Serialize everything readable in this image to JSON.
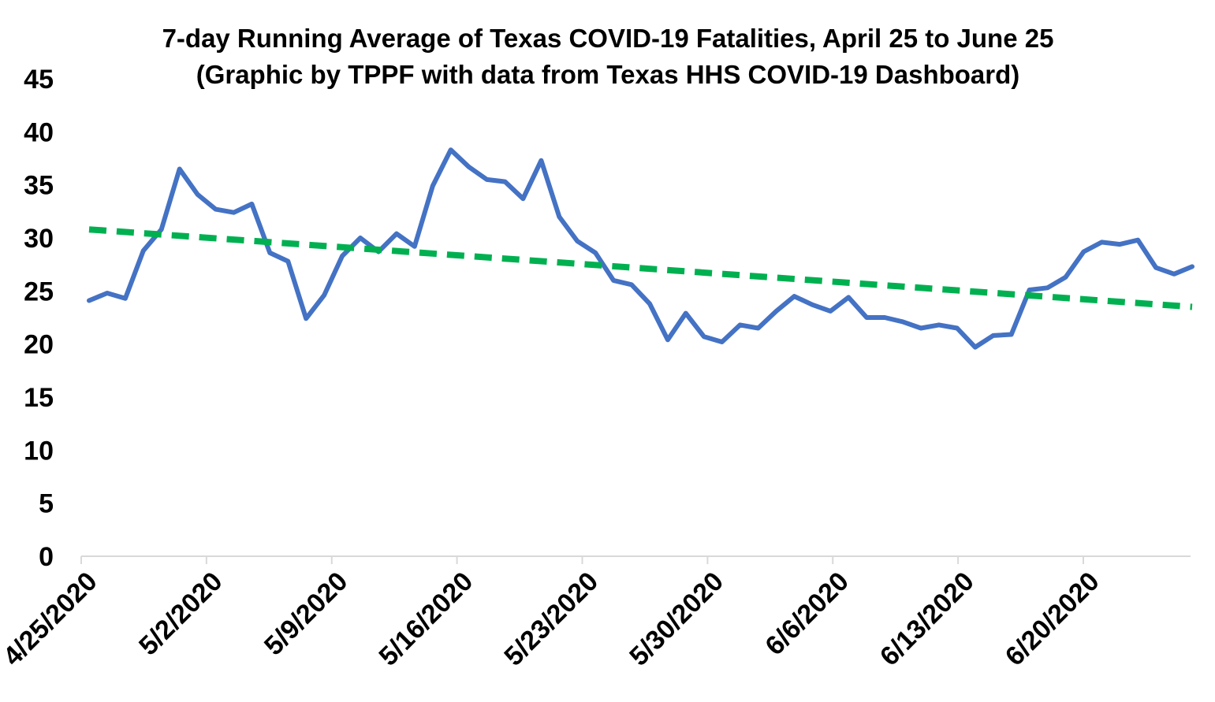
{
  "chart_data": {
    "type": "line",
    "title": "7-day Running Average of Texas COVID-19 Fatalities, April 25 to June 25",
    "subtitle": "(Graphic by TPPF with data from Texas HHS COVID-19 Dashboard)",
    "xlabel": "",
    "ylabel": "",
    "ylim": [
      0,
      45
    ],
    "yticks": [
      "0",
      "5",
      "10",
      "15",
      "20",
      "25",
      "30",
      "35",
      "40",
      "45"
    ],
    "xtick_labels": [
      "4/25/2020",
      "5/2/2020",
      "5/9/2020",
      "5/16/2020",
      "5/23/2020",
      "5/30/2020",
      "6/6/2020",
      "6/13/2020",
      "6/20/2020"
    ],
    "grid": false,
    "legend": "none",
    "x": [
      "4/25/2020",
      "4/26/2020",
      "4/27/2020",
      "4/28/2020",
      "4/29/2020",
      "4/30/2020",
      "5/1/2020",
      "5/2/2020",
      "5/3/2020",
      "5/4/2020",
      "5/5/2020",
      "5/6/2020",
      "5/7/2020",
      "5/8/2020",
      "5/9/2020",
      "5/10/2020",
      "5/11/2020",
      "5/12/2020",
      "5/13/2020",
      "5/14/2020",
      "5/15/2020",
      "5/16/2020",
      "5/17/2020",
      "5/18/2020",
      "5/19/2020",
      "5/20/2020",
      "5/21/2020",
      "5/22/2020",
      "5/23/2020",
      "5/24/2020",
      "5/25/2020",
      "5/26/2020",
      "5/27/2020",
      "5/28/2020",
      "5/29/2020",
      "5/30/2020",
      "5/31/2020",
      "6/1/2020",
      "6/2/2020",
      "6/3/2020",
      "6/4/2020",
      "6/5/2020",
      "6/6/2020",
      "6/7/2020",
      "6/8/2020",
      "6/9/2020",
      "6/10/2020",
      "6/11/2020",
      "6/12/2020",
      "6/13/2020",
      "6/14/2020",
      "6/15/2020",
      "6/16/2020",
      "6/17/2020",
      "6/18/2020",
      "6/19/2020",
      "6/20/2020",
      "6/21/2020",
      "6/22/2020",
      "6/23/2020",
      "6/24/2020",
      "6/25/2020"
    ],
    "series": [
      {
        "values": [
          24.1,
          24.8,
          24.3,
          28.8,
          30.8,
          36.5,
          34.1,
          32.7,
          32.4,
          33.2,
          28.6,
          27.8,
          22.4,
          24.6,
          28.3,
          30.0,
          28.7,
          30.4,
          29.2,
          34.9,
          38.3,
          36.7,
          35.5,
          35.3,
          33.7,
          37.3,
          32.0,
          29.7,
          28.6,
          26.0,
          25.6,
          23.8,
          20.4,
          22.9,
          20.7,
          20.2,
          21.8,
          21.5,
          23.1,
          24.5,
          23.7,
          23.1,
          24.4,
          22.5,
          22.5,
          22.1,
          21.5,
          21.8,
          21.5,
          19.7,
          20.8,
          20.9,
          25.1,
          25.3,
          26.3,
          28.7,
          29.6,
          29.4,
          29.8,
          27.2,
          26.6,
          27.3
        ],
        "color": "#4472C4",
        "style": "solid"
      },
      {
        "values": [
          30.8,
          23.5
        ],
        "x": [
          "4/25/2020",
          "6/25/2020"
        ],
        "color": "#00B050",
        "style": "dashed"
      }
    ]
  }
}
